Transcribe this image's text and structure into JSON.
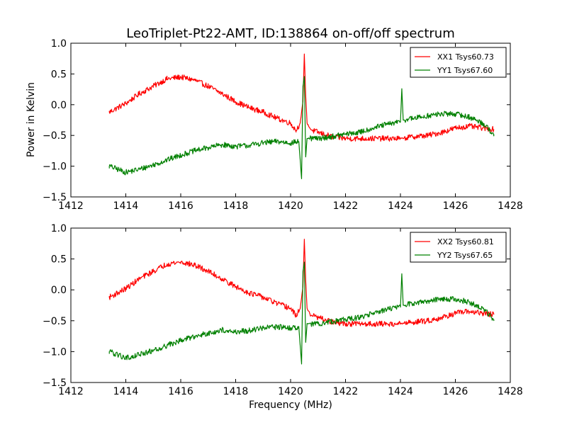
{
  "figure": {
    "title": "LeoTriplet-Pt22-AMT, ID:138864 on-off/off spectrum",
    "ylabel": "Power in Kelvin",
    "xlabel": "Frequency (MHz)"
  },
  "chart_data": [
    {
      "type": "line",
      "xlim": [
        1412,
        1428
      ],
      "ylim": [
        -1.5,
        1.0
      ],
      "xticks": [
        1412,
        1414,
        1416,
        1418,
        1420,
        1422,
        1424,
        1426,
        1428
      ],
      "yticks": [
        -1.5,
        -1.0,
        -0.5,
        0.0,
        0.5,
        1.0
      ],
      "xtick_labels": [
        "1412",
        "1414",
        "1416",
        "1418",
        "1420",
        "1422",
        "1424",
        "1426",
        "1428"
      ],
      "ytick_labels": [
        "−1.5",
        "−1.0",
        "−0.5",
        "0.0",
        "0.5",
        "1.0"
      ],
      "legend_position": "top-right",
      "grid": false,
      "series": [
        {
          "name": "XX1 Tsys60.73",
          "color": "#ff0000",
          "x": [
            1413.4,
            1414.0,
            1414.5,
            1415.0,
            1415.5,
            1416.0,
            1416.5,
            1417.0,
            1417.5,
            1418.0,
            1418.5,
            1419.0,
            1419.5,
            1420.0,
            1420.2,
            1420.35,
            1420.45,
            1420.5,
            1420.55,
            1420.6,
            1420.7,
            1420.8,
            1421.0,
            1421.5,
            1422.0,
            1422.5,
            1423.0,
            1423.5,
            1424.0,
            1424.5,
            1425.0,
            1425.5,
            1426.0,
            1426.5,
            1427.0,
            1427.4
          ],
          "y": [
            -0.12,
            0.02,
            0.18,
            0.3,
            0.42,
            0.45,
            0.4,
            0.3,
            0.18,
            0.05,
            -0.05,
            -0.12,
            -0.22,
            -0.3,
            -0.42,
            -0.3,
            0.05,
            0.82,
            0.15,
            -0.3,
            -0.38,
            -0.42,
            -0.45,
            -0.52,
            -0.55,
            -0.55,
            -0.55,
            -0.55,
            -0.55,
            -0.52,
            -0.5,
            -0.45,
            -0.38,
            -0.35,
            -0.38,
            -0.4
          ]
        },
        {
          "name": "YY1 Tsys67.60",
          "color": "#008000",
          "x": [
            1413.4,
            1414.0,
            1414.5,
            1415.0,
            1415.5,
            1416.0,
            1416.5,
            1417.0,
            1417.5,
            1418.0,
            1418.5,
            1419.0,
            1419.5,
            1420.0,
            1420.3,
            1420.4,
            1420.45,
            1420.5,
            1420.55,
            1420.6,
            1420.8,
            1421.0,
            1421.5,
            1422.0,
            1422.5,
            1423.0,
            1423.5,
            1424.0,
            1424.05,
            1424.1,
            1424.5,
            1425.0,
            1425.5,
            1426.0,
            1426.5,
            1427.0,
            1427.4
          ],
          "y": [
            -1.0,
            -1.1,
            -1.05,
            -0.98,
            -0.9,
            -0.82,
            -0.75,
            -0.7,
            -0.65,
            -0.68,
            -0.66,
            -0.62,
            -0.6,
            -0.62,
            -0.6,
            -1.2,
            0.3,
            0.45,
            -0.85,
            -0.55,
            -0.55,
            -0.55,
            -0.52,
            -0.48,
            -0.45,
            -0.38,
            -0.32,
            -0.28,
            0.26,
            -0.25,
            -0.22,
            -0.18,
            -0.15,
            -0.15,
            -0.2,
            -0.3,
            -0.48
          ]
        }
      ]
    },
    {
      "type": "line",
      "xlim": [
        1412,
        1428
      ],
      "ylim": [
        -1.5,
        1.0
      ],
      "xticks": [
        1412,
        1414,
        1416,
        1418,
        1420,
        1422,
        1424,
        1426,
        1428
      ],
      "yticks": [
        -1.5,
        -1.0,
        -0.5,
        0.0,
        0.5,
        1.0
      ],
      "xtick_labels": [
        "1412",
        "1414",
        "1416",
        "1418",
        "1420",
        "1422",
        "1424",
        "1426",
        "1428"
      ],
      "ytick_labels": [
        "−1.5",
        "−1.0",
        "−0.5",
        "0.0",
        "0.5",
        "1.0"
      ],
      "legend_position": "top-right",
      "grid": false,
      "series": [
        {
          "name": "XX2 Tsys60.81",
          "color": "#ff0000",
          "x": [
            1413.4,
            1414.0,
            1414.5,
            1415.0,
            1415.5,
            1416.0,
            1416.5,
            1417.0,
            1417.5,
            1418.0,
            1418.5,
            1419.0,
            1419.5,
            1420.0,
            1420.2,
            1420.35,
            1420.45,
            1420.5,
            1420.55,
            1420.6,
            1420.7,
            1420.8,
            1421.0,
            1421.5,
            1422.0,
            1422.5,
            1423.0,
            1423.5,
            1424.0,
            1424.5,
            1425.0,
            1425.5,
            1426.0,
            1426.5,
            1427.0,
            1427.4
          ],
          "y": [
            -0.12,
            0.02,
            0.18,
            0.3,
            0.42,
            0.45,
            0.4,
            0.3,
            0.18,
            0.05,
            -0.05,
            -0.12,
            -0.22,
            -0.3,
            -0.42,
            -0.3,
            0.05,
            0.82,
            0.15,
            -0.3,
            -0.38,
            -0.42,
            -0.45,
            -0.52,
            -0.55,
            -0.55,
            -0.55,
            -0.55,
            -0.55,
            -0.52,
            -0.5,
            -0.45,
            -0.38,
            -0.35,
            -0.38,
            -0.4
          ]
        },
        {
          "name": "YY2 Tsys67.65",
          "color": "#008000",
          "x": [
            1413.4,
            1414.0,
            1414.5,
            1415.0,
            1415.5,
            1416.0,
            1416.5,
            1417.0,
            1417.5,
            1418.0,
            1418.5,
            1419.0,
            1419.5,
            1420.0,
            1420.3,
            1420.4,
            1420.45,
            1420.5,
            1420.55,
            1420.6,
            1420.8,
            1421.0,
            1421.5,
            1422.0,
            1422.5,
            1423.0,
            1423.5,
            1424.0,
            1424.05,
            1424.1,
            1424.5,
            1425.0,
            1425.5,
            1426.0,
            1426.5,
            1427.0,
            1427.4
          ],
          "y": [
            -1.0,
            -1.1,
            -1.05,
            -0.98,
            -0.9,
            -0.82,
            -0.75,
            -0.7,
            -0.65,
            -0.68,
            -0.66,
            -0.62,
            -0.6,
            -0.62,
            -0.6,
            -1.2,
            0.3,
            0.45,
            -0.85,
            -0.55,
            -0.55,
            -0.55,
            -0.52,
            -0.48,
            -0.45,
            -0.38,
            -0.32,
            -0.28,
            0.26,
            -0.25,
            -0.22,
            -0.18,
            -0.15,
            -0.15,
            -0.2,
            -0.3,
            -0.48
          ]
        }
      ]
    }
  ]
}
